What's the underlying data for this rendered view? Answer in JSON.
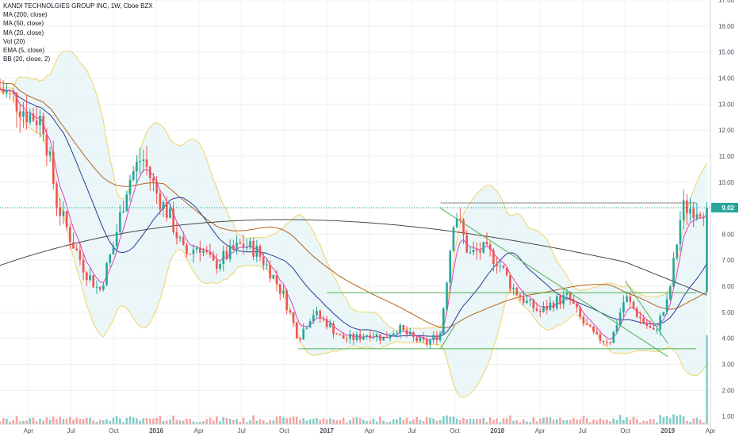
{
  "legend": {
    "symbol": "KANDI TECHNOLGIES GROUP INC, 1W, Cboe BZX",
    "ma200": "MA (200, close)",
    "ma50": "MA (50, close)",
    "ma20": "MA (20, close)",
    "vol": "Vol (20)",
    "ema": "EMA (5, close)",
    "bb": "BB (20, close, 2)"
  },
  "price_badge": "9.02",
  "colors": {
    "up": "#26a69a",
    "down": "#ef5350",
    "vol_up": "#82cdc6",
    "vol_down": "#f5a3a1",
    "ma200": "#4a4a4a",
    "ma50": "#b5651d",
    "ma20": "#2a3a9c",
    "ema": "#e040c0",
    "bb_band": "#f2d36b",
    "bb_fill": "#e6f4f6",
    "trend": "#4caf50",
    "hline": "#26a69a"
  },
  "chart_data": {
    "type": "candlestick",
    "title": "KANDI TECHNOLGIES GROUP INC, 1W, Cboe BZX",
    "xlabel": "",
    "ylabel": "",
    "ylim": [
      0.7,
      17.0
    ],
    "y_ticks": [
      "1.00",
      "2.00",
      "3.00",
      "4.00",
      "5.00",
      "6.00",
      "7.00",
      "8.00",
      "9.00",
      "10.00",
      "11.00",
      "12.00",
      "13.00",
      "14.00",
      "15.00",
      "16.00",
      "17.00"
    ],
    "x_ticks": [
      "Apr",
      "Jul",
      "Oct",
      "2016",
      "Apr",
      "Jul",
      "Oct",
      "2017",
      "Apr",
      "Jul",
      "Oct",
      "2018",
      "Apr",
      "Jul",
      "Oct",
      "2019",
      "Apr"
    ],
    "x_range": [
      "2015-02",
      "2019-04"
    ],
    "last_price": 9.02,
    "close_path": [
      [
        "2015-02",
        13.6
      ],
      [
        "2015-03",
        13.2
      ],
      [
        "2015-04",
        12.6
      ],
      [
        "2015-05",
        12.4
      ],
      [
        "2015-06",
        9.2
      ],
      [
        "2015-07",
        7.8
      ],
      [
        "2015-08",
        6.6
      ],
      [
        "2015-09",
        5.8
      ],
      [
        "2015-10",
        7.6
      ],
      [
        "2015-11",
        10.0
      ],
      [
        "2015-12",
        11.0
      ],
      [
        "2016-01",
        9.6
      ],
      [
        "2016-02",
        8.6
      ],
      [
        "2016-03",
        7.2
      ],
      [
        "2016-04",
        7.6
      ],
      [
        "2016-05",
        6.8
      ],
      [
        "2016-06",
        7.2
      ],
      [
        "2016-07",
        7.6
      ],
      [
        "2016-08",
        7.4
      ],
      [
        "2016-09",
        6.6
      ],
      [
        "2016-10",
        5.6
      ],
      [
        "2016-11",
        4.0
      ],
      [
        "2016-12",
        5.0
      ],
      [
        "2017-01",
        4.6
      ],
      [
        "2017-02",
        4.0
      ],
      [
        "2017-03",
        4.0
      ],
      [
        "2017-04",
        4.2
      ],
      [
        "2017-05",
        4.0
      ],
      [
        "2017-06",
        4.4
      ],
      [
        "2017-07",
        4.0
      ],
      [
        "2017-08",
        3.8
      ],
      [
        "2017-09",
        4.2
      ],
      [
        "2017-10",
        9.0
      ],
      [
        "2017-11",
        7.2
      ],
      [
        "2017-12",
        7.4
      ],
      [
        "2018-01",
        7.0
      ],
      [
        "2018-02",
        6.0
      ],
      [
        "2018-03",
        5.4
      ],
      [
        "2018-04",
        5.0
      ],
      [
        "2018-05",
        5.4
      ],
      [
        "2018-06",
        5.6
      ],
      [
        "2018-07",
        4.6
      ],
      [
        "2018-08",
        4.0
      ],
      [
        "2018-09",
        3.9
      ],
      [
        "2018-10",
        5.6
      ],
      [
        "2018-11",
        4.8
      ],
      [
        "2018-12",
        4.2
      ],
      [
        "2019-01",
        5.4
      ],
      [
        "2019-02",
        9.02
      ]
    ],
    "horizontal_levels": [
      {
        "y": 9.2,
        "from": "2017-09",
        "to": "2019-03"
      },
      {
        "y": 5.75,
        "from": "2017-01",
        "to": "2019-03"
      },
      {
        "y": 3.6,
        "from": "2016-11",
        "to": "2019-03"
      }
    ],
    "trendlines": [
      {
        "from": [
          "2017-09",
          9.0
        ],
        "to": [
          "2019-01",
          3.3
        ]
      },
      {
        "from": [
          "2017-09",
          3.6
        ],
        "to": [
          "2017-10",
          4.5
        ]
      },
      {
        "from": [
          "2018-10",
          6.2
        ],
        "to": [
          "2019-01",
          3.8
        ]
      }
    ],
    "grid": true,
    "legend_position": "top-left"
  }
}
